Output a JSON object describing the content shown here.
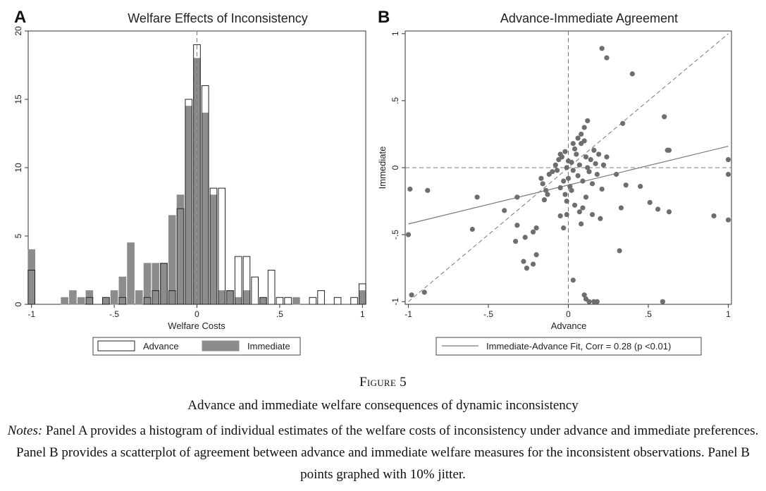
{
  "panelA": {
    "letter": "A",
    "title": "Welfare Effects of Inconsistency",
    "xlabel": "Welfare Costs",
    "legend": [
      "Advance",
      "Immediate"
    ],
    "xticks": [
      {
        "v": -1,
        "t": "-1"
      },
      {
        "v": -0.5,
        "t": "-.5"
      },
      {
        "v": 0,
        "t": "0"
      },
      {
        "v": 0.5,
        "t": ".5"
      },
      {
        "v": 1,
        "t": "1"
      }
    ],
    "yticks": [
      {
        "v": 0,
        "t": "0"
      },
      {
        "v": 5,
        "t": "5"
      },
      {
        "v": 10,
        "t": "10"
      },
      {
        "v": 15,
        "t": "15"
      },
      {
        "v": 20,
        "t": "20"
      }
    ]
  },
  "panelB": {
    "letter": "B",
    "title": "Advance-Immediate Agreement",
    "xlabel": "Advance",
    "ylabel": "Immediate",
    "legend": "Immediate-Advance Fit, Corr = 0.28 (p <0.01)",
    "xticks": [
      {
        "v": -1,
        "t": "-1"
      },
      {
        "v": -0.5,
        "t": "-.5"
      },
      {
        "v": 0,
        "t": "0"
      },
      {
        "v": 0.5,
        "t": ".5"
      },
      {
        "v": 1,
        "t": "1"
      }
    ],
    "yticks": [
      {
        "v": -1,
        "t": "-1"
      },
      {
        "v": -0.5,
        "t": "-.5"
      },
      {
        "v": 0,
        "t": "0"
      },
      {
        "v": 0.5,
        "t": ".5"
      },
      {
        "v": 1,
        "t": "1"
      }
    ]
  },
  "caption": {
    "label": "Figure 5",
    "title": "Advance and immediate welfare consequences of dynamic inconsistency",
    "notes_prefix": "Notes:",
    "notes": " Panel A provides a histogram of individual estimates of the welfare costs of inconsistency under advance and immediate preferences. Panel B provides a scatterplot of agreement between advance and immediate welfare measures for the inconsistent observations. Panel B points graphed with 10% jitter."
  },
  "colors": {
    "immediate_fill": "#8c8c8c",
    "advance_fill": "#ffffff",
    "outline": "#222222",
    "points": "#6e6e6e",
    "fit_line": "#777777",
    "axis": "#333333"
  },
  "chart_data": [
    {
      "type": "bar",
      "panel": "A",
      "title": "Welfare Effects of Inconsistency",
      "xlabel": "Welfare Costs",
      "ylabel": "",
      "xlim": [
        -1.02,
        1.02
      ],
      "ylim": [
        0,
        20
      ],
      "bin_width": 0.05,
      "grid": false,
      "legend_position": "bottom",
      "series": [
        {
          "name": "Advance",
          "style": "outline",
          "x": [
            -1,
            -0.65,
            -0.55,
            -0.45,
            -0.3,
            -0.25,
            -0.2,
            -0.15,
            -0.1,
            -0.05,
            0,
            0.05,
            0.1,
            0.15,
            0.2,
            0.25,
            0.3,
            0.35,
            0.4,
            0.45,
            0.5,
            0.55,
            0.7,
            0.75,
            0.85,
            0.95,
            1
          ],
          "y": [
            2.5,
            0.5,
            0.5,
            0.5,
            0.5,
            1,
            3,
            1,
            7,
            15,
            19,
            16,
            8.5,
            8.5,
            1,
            3.5,
            3.5,
            2,
            0.5,
            2.5,
            0.5,
            0.5,
            0.5,
            1,
            0.5,
            0.5,
            1.5
          ]
        },
        {
          "name": "Immediate",
          "style": "filled",
          "x": [
            -1,
            -0.8,
            -0.75,
            -0.7,
            -0.65,
            -0.55,
            -0.5,
            -0.45,
            -0.4,
            -0.35,
            -0.3,
            -0.25,
            -0.2,
            -0.15,
            -0.1,
            -0.05,
            0,
            0.05,
            0.1,
            0.15,
            0.2,
            0.25,
            0.3,
            0.4,
            0.6,
            1
          ],
          "y": [
            4,
            0.5,
            1,
            0.5,
            1,
            0.5,
            1,
            2,
            4.5,
            1,
            3,
            3,
            3,
            6.5,
            8,
            14.5,
            18,
            14,
            8,
            1,
            1,
            0.5,
            1,
            0.5,
            0.5,
            1
          ]
        }
      ]
    },
    {
      "type": "scatter",
      "panel": "B",
      "title": "Advance-Immediate Agreement",
      "xlabel": "Advance",
      "ylabel": "Immediate",
      "xlim": [
        -1.02,
        1.02
      ],
      "ylim": [
        -1.02,
        1.02
      ],
      "reference_lines": {
        "x": 0,
        "y": 0,
        "diagonal": true
      },
      "fit_line": {
        "label": "Immediate-Advance Fit, Corr = 0.28 (p <0.01)",
        "x": [
          -1,
          1
        ],
        "y": [
          -0.42,
          0.16
        ]
      },
      "legend_position": "bottom",
      "points": [
        [
          -1,
          -0.5
        ],
        [
          -0.98,
          -0.95
        ],
        [
          -0.99,
          -0.16
        ],
        [
          -0.88,
          -0.17
        ],
        [
          -0.9,
          -0.93
        ],
        [
          -0.57,
          -0.22
        ],
        [
          -0.6,
          -0.46
        ],
        [
          -0.4,
          -0.32
        ],
        [
          -0.32,
          -0.22
        ],
        [
          -0.32,
          -0.43
        ],
        [
          -0.33,
          -0.55
        ],
        [
          -0.27,
          -0.52
        ],
        [
          -0.26,
          -0.75
        ],
        [
          -0.28,
          -0.7
        ],
        [
          -0.22,
          -0.48
        ],
        [
          -0.2,
          -0.45
        ],
        [
          -0.22,
          -0.72
        ],
        [
          -0.2,
          -0.65
        ],
        [
          -0.15,
          -0.24
        ],
        [
          -0.14,
          -0.17
        ],
        [
          -0.16,
          -0.12
        ],
        [
          -0.17,
          -0.08
        ],
        [
          -0.12,
          -0.05
        ],
        [
          -0.1,
          -0.03
        ],
        [
          -0.13,
          -0.2
        ],
        [
          -0.08,
          0.02
        ],
        [
          -0.06,
          0.06
        ],
        [
          -0.04,
          0.08
        ],
        [
          -0.03,
          -0.1
        ],
        [
          -0.05,
          -0.15
        ],
        [
          -0.02,
          -0.2
        ],
        [
          -0.01,
          -0.25
        ],
        [
          0.02,
          0.04
        ],
        [
          0.03,
          -0.02
        ],
        [
          0.05,
          0.1
        ],
        [
          0.04,
          0.14
        ],
        [
          0.06,
          -0.06
        ],
        [
          0.07,
          0.02
        ],
        [
          0.08,
          0.18
        ],
        [
          0.1,
          0.2
        ],
        [
          0.09,
          -0.1
        ],
        [
          0.11,
          0.08
        ],
        [
          0.12,
          0.0
        ],
        [
          0.13,
          -0.03
        ],
        [
          0.14,
          0.06
        ],
        [
          0.15,
          -0.12
        ],
        [
          0.16,
          0.13
        ],
        [
          0.17,
          0.03
        ],
        [
          0.18,
          -0.05
        ],
        [
          0.19,
          0.1
        ],
        [
          0.21,
          -0.16
        ],
        [
          0.22,
          0.02
        ],
        [
          0.24,
          0.08
        ],
        [
          0.1,
          0.3
        ],
        [
          0.12,
          0.35
        ],
        [
          0.08,
          0.25
        ],
        [
          0.06,
          0.22
        ],
        [
          0.03,
          0.18
        ],
        [
          -0.02,
          0.12
        ],
        [
          -0.05,
          0.1
        ],
        [
          0.0,
          -0.08
        ],
        [
          -0.01,
          0.0
        ],
        [
          0.01,
          -0.14
        ],
        [
          0.02,
          -0.17
        ],
        [
          0.0,
          0.05
        ],
        [
          -0.07,
          -0.02
        ],
        [
          0.21,
          0.89
        ],
        [
          0.24,
          0.82
        ],
        [
          0.4,
          0.7
        ],
        [
          0.34,
          0.33
        ],
        [
          0.6,
          0.38
        ],
        [
          0.63,
          0.13
        ],
        [
          0.62,
          0.13
        ],
        [
          0.3,
          -0.05
        ],
        [
          0.36,
          -0.13
        ],
        [
          0.45,
          -0.14
        ],
        [
          0.51,
          -0.26
        ],
        [
          0.56,
          -0.31
        ],
        [
          0.63,
          -0.33
        ],
        [
          0.33,
          -0.3
        ],
        [
          0.32,
          -0.62
        ],
        [
          0.59,
          -1.0
        ],
        [
          0.91,
          -0.36
        ],
        [
          1.0,
          -0.39
        ],
        [
          1.0,
          -0.05
        ],
        [
          1.0,
          0.06
        ],
        [
          0.1,
          -0.95
        ],
        [
          0.11,
          -0.98
        ],
        [
          0.13,
          -1.0
        ],
        [
          0.16,
          -1.0
        ],
        [
          0.18,
          -1.0
        ],
        [
          0.03,
          -0.84
        ],
        [
          0.08,
          -0.42
        ],
        [
          0.07,
          -0.33
        ],
        [
          0.09,
          -0.3
        ],
        [
          -0.01,
          -0.35
        ],
        [
          -0.03,
          -0.45
        ],
        [
          0.15,
          -0.35
        ],
        [
          0.2,
          -0.38
        ],
        [
          -0.05,
          -0.36
        ],
        [
          0.04,
          -0.28
        ],
        [
          0.11,
          -0.22
        ]
      ]
    }
  ]
}
